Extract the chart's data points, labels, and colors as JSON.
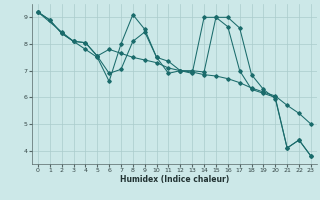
{
  "xlabel": "Humidex (Indice chaleur)",
  "xlim": [
    -0.5,
    23.5
  ],
  "ylim": [
    3.5,
    9.5
  ],
  "yticks": [
    4,
    5,
    6,
    7,
    8,
    9
  ],
  "xticks": [
    0,
    1,
    2,
    3,
    4,
    5,
    6,
    7,
    8,
    9,
    10,
    11,
    12,
    13,
    14,
    15,
    16,
    17,
    18,
    19,
    20,
    21,
    22,
    23
  ],
  "bg_color": "#cce8e8",
  "grid_color": "#aacccc",
  "line_color": "#1a6b6b",
  "series": [
    {
      "x": [
        0,
        1,
        2,
        3,
        4,
        5,
        6,
        7,
        8,
        9,
        10,
        11,
        12,
        13,
        14,
        15,
        16,
        17,
        18,
        19,
        20,
        21,
        22,
        23
      ],
      "y": [
        9.2,
        8.9,
        8.4,
        8.1,
        7.8,
        7.5,
        6.6,
        8.0,
        9.1,
        8.55,
        7.5,
        6.9,
        7.0,
        6.9,
        9.0,
        9.0,
        8.65,
        7.0,
        6.3,
        6.15,
        6.0,
        4.1,
        4.4,
        3.8
      ]
    },
    {
      "x": [
        0,
        1,
        2,
        3,
        4,
        5,
        6,
        7,
        8,
        9,
        10,
        11,
        12,
        13,
        14,
        15,
        16,
        17,
        18,
        19,
        20,
        21,
        22,
        23
      ],
      "y": [
        9.2,
        8.9,
        8.4,
        8.1,
        8.05,
        7.55,
        7.8,
        7.65,
        7.5,
        7.4,
        7.3,
        7.1,
        7.0,
        6.95,
        6.85,
        6.8,
        6.7,
        6.55,
        6.35,
        6.2,
        6.05,
        5.7,
        5.4,
        5.0
      ]
    },
    {
      "x": [
        0,
        2,
        3,
        4,
        5,
        6,
        7,
        8,
        9,
        10,
        11,
        12,
        13,
        14,
        15,
        16,
        17,
        18,
        19,
        20,
        21,
        22,
        23
      ],
      "y": [
        9.2,
        8.45,
        8.1,
        8.05,
        7.55,
        6.9,
        7.05,
        8.1,
        8.45,
        7.5,
        7.35,
        7.0,
        7.0,
        6.95,
        9.0,
        9.0,
        8.6,
        6.85,
        6.3,
        5.95,
        4.1,
        4.4,
        3.8
      ]
    }
  ]
}
